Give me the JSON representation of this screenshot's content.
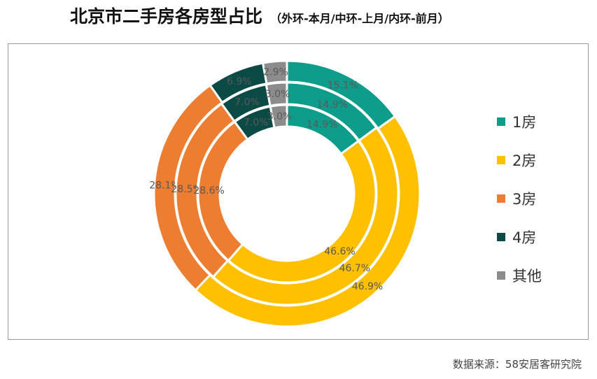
{
  "header": {
    "title": "北京市二手房各房型占比",
    "subtitle": "（外环-本月/中环-上月/内环-前月）"
  },
  "source": "数据来源：58安居客研究院",
  "colors": {
    "1房": "#0E9C8B",
    "2房": "#FFC000",
    "3房": "#ED7D31",
    "4房": "#0B4A45",
    "其他": "#8C8C8C"
  },
  "chart_data": {
    "type": "pie",
    "subtype": "multi-ring donut",
    "categories": [
      "1房",
      "2房",
      "3房",
      "4房",
      "其他"
    ],
    "series": [
      {
        "ring": "outer",
        "values": [
          15.1,
          46.9,
          28.1,
          6.9,
          2.9
        ],
        "labels": [
          "15.1%",
          "46.9%",
          "28.1%",
          "6.9%",
          "2.9%"
        ]
      },
      {
        "ring": "middle",
        "values": [
          14.9,
          46.7,
          28.5,
          7.0,
          3.0
        ],
        "labels": [
          "14.9%",
          "46.7%",
          "28.5%",
          "7.0%",
          "3.0%"
        ]
      },
      {
        "ring": "inner",
        "values": [
          14.9,
          46.6,
          28.6,
          7.0,
          3.0
        ],
        "labels": [
          "14.9%",
          "46.6%",
          "28.6%",
          "7.0%",
          "3.0%"
        ]
      }
    ],
    "legend": {
      "position": "right",
      "entries": [
        "1房",
        "2房",
        "3房",
        "4房",
        "其他"
      ]
    }
  }
}
